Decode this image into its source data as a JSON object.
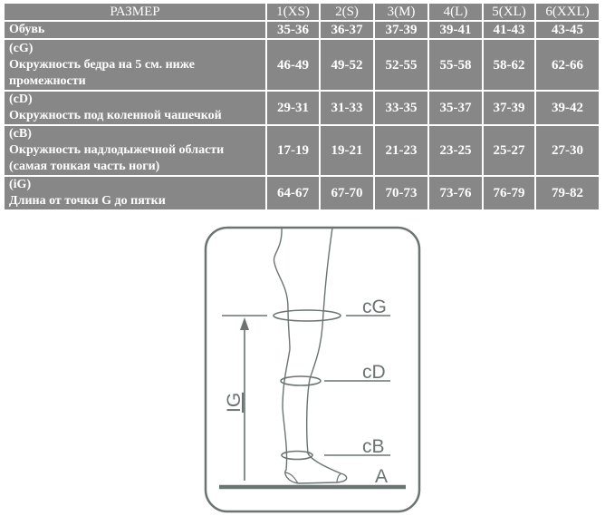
{
  "table": {
    "header": [
      "РАЗМЕР",
      "1(XS)",
      "2(S)",
      "3(M)",
      "4(L)",
      "5(XL)",
      "6(XXL)"
    ],
    "rows": [
      {
        "code": "",
        "label": "Обувь",
        "label2": "",
        "values": [
          "35-36",
          "36-37",
          "37-39",
          "39-41",
          "41-43",
          "43-45"
        ]
      },
      {
        "code": "(cG)",
        "label": "Окружность бедра на 5 см. ниже",
        "label2": "промежности",
        "values": [
          "46-49",
          "49-52",
          "52-55",
          "55-58",
          "58-62",
          "62-66"
        ]
      },
      {
        "code": "(cD)",
        "label": "Окружность под коленной чашечкой",
        "label2": "",
        "values": [
          "29-31",
          "31-33",
          "33-35",
          "35-37",
          "37-39",
          "39-42"
        ]
      },
      {
        "code": "(cB)",
        "label": "Окружность надлодыжечной области",
        "label2": "(самая тонкая часть ноги)",
        "values": [
          "17-19",
          "19-21",
          "21-23",
          "23-25",
          "25-27",
          "27-30"
        ]
      },
      {
        "code": "(iG)",
        "label": "Длина от точки G до пятки",
        "label2": "",
        "values": [
          "64-67",
          "67-70",
          "70-73",
          "73-76",
          "76-79",
          "79-82"
        ]
      }
    ]
  },
  "diagram": {
    "labels": {
      "cG": "cG",
      "cD": "cD",
      "cB": "cB",
      "A": "A",
      "IG": "IG"
    },
    "stroke_color": "#6b7373"
  }
}
